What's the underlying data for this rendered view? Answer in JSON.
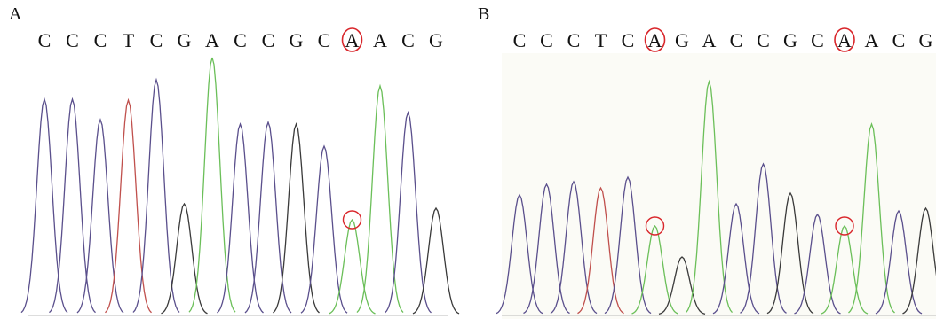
{
  "colors": {
    "A": "#6bbf59",
    "C": "#5a4f8c",
    "G": "#3a3a3a",
    "T": "#c0504d"
  },
  "highlight_color": "#d9262b",
  "panels": [
    {
      "label": "A",
      "bases": [
        {
          "base": "C",
          "height": 243,
          "circled": false
        },
        {
          "base": "C",
          "height": 243,
          "circled": false
        },
        {
          "base": "C",
          "height": 220,
          "circled": false
        },
        {
          "base": "T",
          "height": 242,
          "circled": false
        },
        {
          "base": "C",
          "height": 265,
          "circled": false
        },
        {
          "base": "G",
          "height": 125,
          "circled": false
        },
        {
          "base": "A",
          "height": 290,
          "circled": false
        },
        {
          "base": "C",
          "height": 215,
          "circled": false
        },
        {
          "base": "C",
          "height": 217,
          "circled": false
        },
        {
          "base": "G",
          "height": 215,
          "circled": false
        },
        {
          "base": "C",
          "height": 190,
          "circled": false
        },
        {
          "base": "A",
          "height": 107,
          "circled": true
        },
        {
          "base": "A",
          "height": 258,
          "circled": false
        },
        {
          "base": "C",
          "height": 228,
          "circled": false
        },
        {
          "base": "G",
          "height": 120,
          "circled": false
        }
      ]
    },
    {
      "label": "B",
      "bases": [
        {
          "base": "C",
          "height": 135,
          "circled": false
        },
        {
          "base": "C",
          "height": 147,
          "circled": false
        },
        {
          "base": "C",
          "height": 150,
          "circled": false
        },
        {
          "base": "T",
          "height": 143,
          "circled": false
        },
        {
          "base": "C",
          "height": 155,
          "circled": false
        },
        {
          "base": "A",
          "height": 100,
          "circled": true
        },
        {
          "base": "G",
          "height": 65,
          "circled": false
        },
        {
          "base": "A",
          "height": 263,
          "circled": false
        },
        {
          "base": "C",
          "height": 125,
          "circled": false
        },
        {
          "base": "C",
          "height": 170,
          "circled": false
        },
        {
          "base": "G",
          "height": 137,
          "circled": false
        },
        {
          "base": "C",
          "height": 113,
          "circled": false
        },
        {
          "base": "A",
          "height": 100,
          "circled": true
        },
        {
          "base": "A",
          "height": 215,
          "circled": false
        },
        {
          "base": "C",
          "height": 117,
          "circled": false
        },
        {
          "base": "G",
          "height": 120,
          "circled": false
        }
      ]
    }
  ]
}
